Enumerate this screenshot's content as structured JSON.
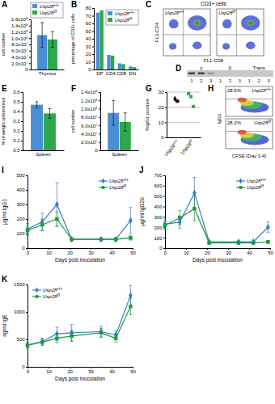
{
  "chart_data": [
    {
      "type": "bar",
      "title": "A",
      "ylabel": "cell number",
      "categories": [
        "Thymus"
      ],
      "series": [
        {
          "name": "Usp28+/+",
          "color": "#4a8fd4",
          "values": [
            110000000
          ],
          "errors": [
            40000000
          ]
        },
        {
          "name": "Usp28f/f",
          "color": "#2ea84a",
          "values": [
            96000000
          ],
          "errors": [
            25000000
          ]
        }
      ],
      "ylim": [
        0,
        160000000
      ],
      "yticks": [
        0,
        {
          "value": 20000000,
          "label": "2.0x10⁷"
        },
        {
          "value": 40000000,
          "label": "4.0x10⁷"
        },
        {
          "value": 60000000,
          "label": "6.0x10⁷"
        },
        {
          "value": 80000000,
          "label": "8.0x10⁷"
        },
        {
          "value": 100000000,
          "label": "1.0x10⁸"
        },
        {
          "value": 120000000,
          "label": "1.2x10⁸"
        },
        {
          "value": 140000000,
          "label": "1.4x10⁸"
        },
        {
          "value": 160000000,
          "label": "1.6x10⁸"
        }
      ],
      "legend": "top"
    },
    {
      "type": "bar",
      "title": "B",
      "ylabel": "percentage of CD3+ cells",
      "categories": [
        "DP",
        "CD4",
        "CD8",
        "DN"
      ],
      "series": [
        {
          "name": "Usp28+/+",
          "color": "#4a8fd4",
          "values": [
            74,
            19,
            8,
            4
          ]
        },
        {
          "name": "Usp28f/f",
          "color": "#2ea84a",
          "values": [
            77,
            18,
            7,
            3
          ]
        }
      ],
      "ylim": [
        0,
        80
      ],
      "yticks": [
        0,
        10,
        20,
        30,
        40,
        50,
        60,
        70,
        80
      ],
      "legend": "top-right"
    },
    {
      "type": "flow",
      "title": "C",
      "subtitle": "CD3+ cells",
      "xlabel": "FL1-CD8",
      "ylabel": "FL3-CD4",
      "plots": [
        "Usp28+/+",
        "Usp28f/f"
      ]
    },
    {
      "type": "gel",
      "title": "D",
      "groups": [
        {
          "name": "γ",
          "lanes": [
            "1",
            "2",
            "3"
          ]
        },
        {
          "name": "β",
          "lanes": [
            "1",
            "2",
            "3"
          ]
        },
        {
          "name": "Trans",
          "lanes": [
            "1",
            "2",
            "3"
          ]
        }
      ]
    },
    {
      "type": "bar",
      "title": "E",
      "ylabel": "% of weight spleen/mice",
      "categories": [
        "Spleen"
      ],
      "series": [
        {
          "name": "Usp28+/+",
          "color": "#4a8fd4",
          "values": [
            0.47
          ],
          "errors": [
            0.03
          ]
        },
        {
          "name": "Usp28f/f",
          "color": "#2ea84a",
          "values": [
            0.38
          ],
          "errors": [
            0.05
          ]
        }
      ],
      "ylim": [
        0,
        0.6
      ],
      "yticks": [
        {
          "value": 0,
          "label": "0.0"
        },
        0.1,
        0.2,
        0.3,
        0.4,
        0.5,
        0.6
      ]
    },
    {
      "type": "bar",
      "title": "F",
      "ylabel": "cell number",
      "categories": [
        "Spleen"
      ],
      "series": [
        {
          "name": "Usp28+/+",
          "color": "#4a8fd4",
          "values": [
            90000000
          ],
          "errors": [
            30000000
          ]
        },
        {
          "name": "Usp28f/f",
          "color": "#2ea84a",
          "values": [
            68000000
          ],
          "errors": [
            22000000
          ]
        }
      ],
      "ylim": [
        0,
        140000000
      ],
      "yticks": [
        0,
        {
          "value": 20000000,
          "label": "2.0x10⁷"
        },
        {
          "value": 40000000,
          "label": "4.0x10⁷"
        },
        {
          "value": 60000000,
          "label": "6.0x10⁷"
        },
        {
          "value": 80000000,
          "label": "8.0x10⁷"
        },
        {
          "value": 100000000,
          "label": "1.0x10⁸"
        },
        {
          "value": 120000000,
          "label": "1.2x10⁸"
        },
        {
          "value": 140000000,
          "label": "1.4x10⁸"
        }
      ]
    },
    {
      "type": "dot",
      "title": "G",
      "ylabel": "%IgG1 positive",
      "categories": [
        "Usp28+/+",
        "Usp28f/f"
      ],
      "series": [
        {
          "color": "#000000",
          "marker": "diamond",
          "values": [
            25.5,
            null
          ]
        },
        {
          "color": "#000000",
          "marker": "circle",
          "values": [
            24,
            null
          ]
        },
        {
          "color": "#2ea84a",
          "marker": "square",
          "values": [
            null,
            29
          ]
        },
        {
          "color": "#2ea84a",
          "marker": "square",
          "values": [
            null,
            27
          ]
        },
        {
          "color": "#2ea84a",
          "marker": "square",
          "values": [
            null,
            20.5
          ]
        }
      ],
      "ylim": [
        0,
        30
      ],
      "yticks": [
        0,
        10,
        20,
        30
      ],
      "grid": true
    },
    {
      "type": "cfse",
      "title": "H",
      "xlabel": "CFSE (Day 1-4)",
      "ylabel": "IgG1",
      "plots": [
        {
          "label": "Usp28+/+",
          "percent": "28.5%"
        },
        {
          "label": "Usp28f/f",
          "percent": "28.2%"
        }
      ]
    },
    {
      "type": "line",
      "title": "I",
      "xlabel": "Days post inoculation",
      "ylabel": "μg/ml IgG1",
      "x": [
        0,
        7,
        14,
        21,
        35,
        42,
        49
      ],
      "series": [
        {
          "name": "Usp28+/+",
          "color": "#3a7fc8",
          "marker": "diamond",
          "values": [
            130,
            180,
            300,
            60,
            60,
            60,
            190
          ],
          "errors": [
            40,
            60,
            150,
            10,
            10,
            10,
            90
          ]
        },
        {
          "name": "Usp28f/f",
          "color": "#1f9a3c",
          "marker": "square",
          "values": [
            120,
            160,
            200,
            60,
            60,
            60,
            70
          ],
          "errors": [
            30,
            40,
            50,
            10,
            10,
            10,
            15
          ]
        }
      ],
      "xlim": [
        0,
        50
      ],
      "xticks": [
        0,
        10,
        20,
        30,
        40,
        50
      ],
      "ylim": [
        0,
        500
      ],
      "yticks": [
        0,
        100,
        200,
        300,
        400,
        500
      ],
      "legend": "top-right"
    },
    {
      "type": "line",
      "title": "J",
      "xlabel": "Days post inoculation",
      "ylabel": "μg/ml IgG2b",
      "x": [
        0,
        7,
        14,
        21,
        35,
        42,
        49
      ],
      "series": [
        {
          "name": "Usp28+/+",
          "color": "#3a7fc8",
          "marker": "diamond",
          "values": [
            230,
            250,
            530,
            60,
            60,
            60,
            200
          ],
          "errors": [
            50,
            60,
            150,
            10,
            10,
            10,
            50
          ]
        },
        {
          "name": "Usp28f/f",
          "color": "#1f9a3c",
          "marker": "square",
          "values": [
            220,
            290,
            380,
            50,
            50,
            50,
            60
          ],
          "errors": [
            40,
            70,
            120,
            10,
            10,
            10,
            15
          ]
        }
      ],
      "xlim": [
        0,
        50
      ],
      "xticks": [
        0,
        10,
        20,
        30,
        40,
        50
      ],
      "ylim": [
        0,
        700
      ],
      "yticks": [
        0,
        100,
        200,
        300,
        400,
        500,
        600,
        700
      ],
      "legend": "top-right"
    },
    {
      "type": "line",
      "title": "K",
      "xlabel": "Days post inoculation",
      "ylabel": "ng/ml IgE",
      "x": [
        0,
        7,
        14,
        21,
        35,
        42,
        49
      ],
      "series": [
        {
          "name": "Usp28+/+",
          "color": "#3a7fc8",
          "marker": "diamond",
          "values": [
            400,
            460,
            600,
            620,
            640,
            580,
            1300
          ],
          "errors": [
            50,
            60,
            120,
            150,
            100,
            80,
            180
          ]
        },
        {
          "name": "Usp28f/f",
          "color": "#1f9a3c",
          "marker": "square",
          "values": [
            390,
            450,
            520,
            560,
            620,
            520,
            1100
          ],
          "errors": [
            50,
            60,
            80,
            100,
            80,
            70,
            150
          ]
        }
      ],
      "xlim": [
        0,
        50
      ],
      "xticks": [
        0,
        10,
        20,
        30,
        40,
        50
      ],
      "ylim": [
        0,
        1500
      ],
      "yticks": [
        0,
        500,
        1000,
        1500
      ],
      "legend": "top-left"
    }
  ]
}
